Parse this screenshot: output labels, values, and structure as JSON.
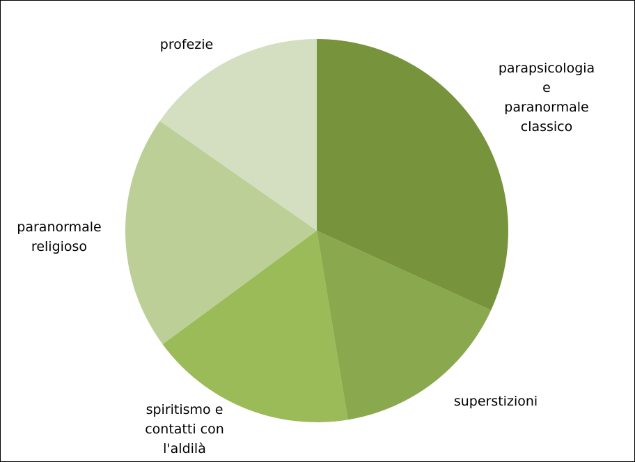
{
  "chart_data": {
    "type": "pie",
    "categories": [
      "parapsicologia\ne\nparanormale\nclassico",
      "superstizioni",
      "spiritismo e\ncontatti con\nl'aldilà",
      "paranormale\nreligioso",
      "profezie"
    ],
    "values": [
      31.8,
      15.6,
      17.5,
      19.8,
      15.3
    ],
    "colors": [
      "#77933c",
      "#8aa84e",
      "#9bbb59",
      "#bbcf97",
      "#d3dfc0"
    ]
  }
}
